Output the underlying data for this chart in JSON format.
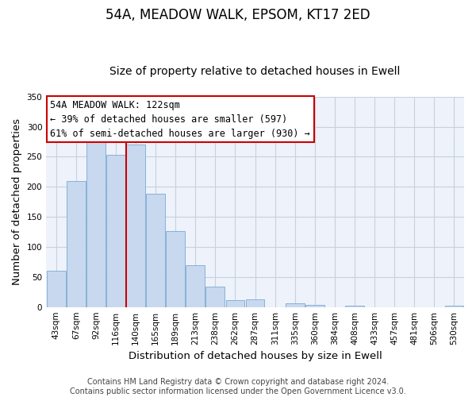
{
  "title": "54A, MEADOW WALK, EPSOM, KT17 2ED",
  "subtitle": "Size of property relative to detached houses in Ewell",
  "xlabel": "Distribution of detached houses by size in Ewell",
  "ylabel": "Number of detached properties",
  "bar_labels": [
    "43sqm",
    "67sqm",
    "92sqm",
    "116sqm",
    "140sqm",
    "165sqm",
    "189sqm",
    "213sqm",
    "238sqm",
    "262sqm",
    "287sqm",
    "311sqm",
    "335sqm",
    "360sqm",
    "384sqm",
    "408sqm",
    "433sqm",
    "457sqm",
    "481sqm",
    "506sqm",
    "530sqm"
  ],
  "bar_values": [
    60,
    210,
    280,
    253,
    270,
    188,
    126,
    70,
    34,
    11,
    13,
    0,
    6,
    4,
    0,
    2,
    0,
    0,
    0,
    0,
    2
  ],
  "bar_color": "#c8d8ee",
  "bar_edge_color": "#7aaad4",
  "vline_color": "#cc0000",
  "annotation_text": "54A MEADOW WALK: 122sqm\n← 39% of detached houses are smaller (597)\n61% of semi-detached houses are larger (930) →",
  "annotation_box_color": "#ffffff",
  "annotation_box_edge": "#cc0000",
  "ylim": [
    0,
    350
  ],
  "yticks": [
    0,
    50,
    100,
    150,
    200,
    250,
    300,
    350
  ],
  "footer_line1": "Contains HM Land Registry data © Crown copyright and database right 2024.",
  "footer_line2": "Contains public sector information licensed under the Open Government Licence v3.0.",
  "bg_color": "#ffffff",
  "plot_bg_color": "#eef2fa",
  "grid_color": "#c8d0e0",
  "title_fontsize": 12,
  "subtitle_fontsize": 10,
  "axis_label_fontsize": 9.5,
  "tick_fontsize": 7.5,
  "annotation_fontsize": 8.5,
  "footer_fontsize": 7
}
